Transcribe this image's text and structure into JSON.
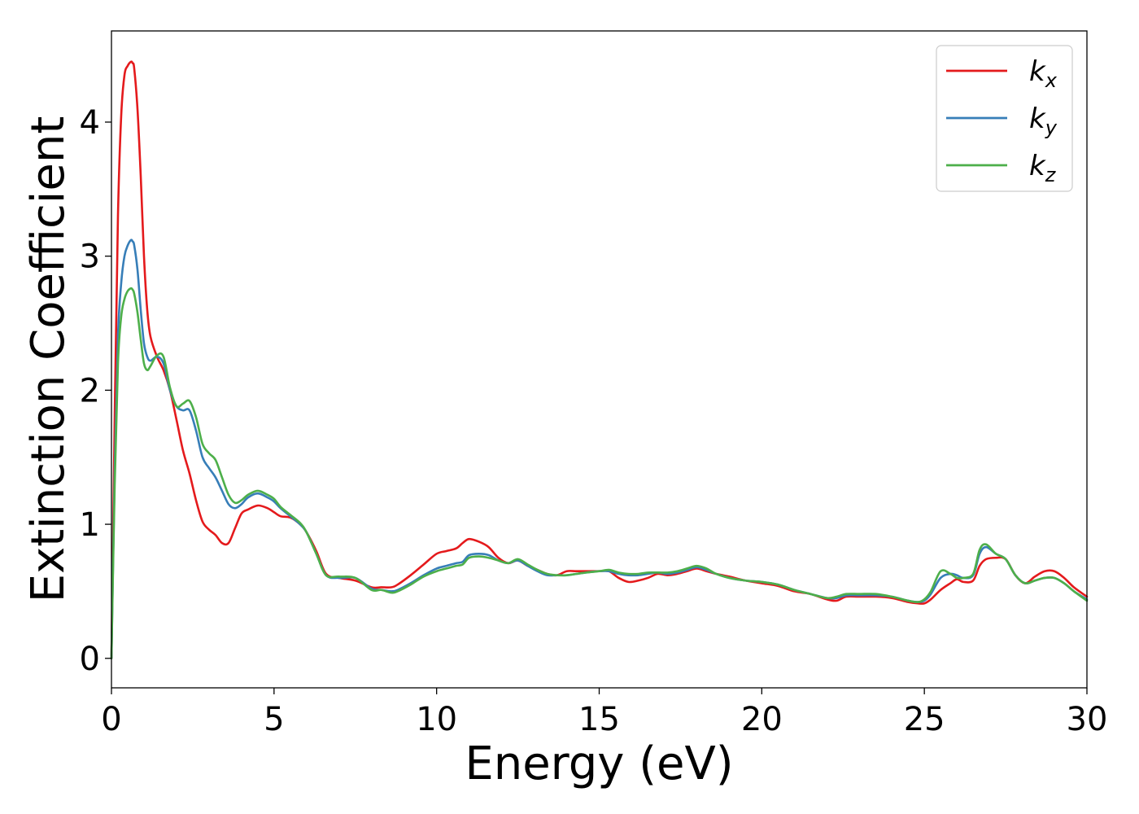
{
  "chart_data": {
    "type": "line",
    "xlabel": "Energy (eV)",
    "ylabel": "Extinction Coefficient",
    "xlim": [
      0,
      30
    ],
    "ylim": [
      -0.22,
      4.68
    ],
    "xticks": [
      0,
      5,
      10,
      15,
      20,
      25,
      30
    ],
    "yticks": [
      0,
      1,
      2,
      3,
      4
    ],
    "grid": false,
    "legend_position": "top-right",
    "series": [
      {
        "name": "k_x",
        "label_base": "k",
        "label_sub": "x",
        "color": "#e41a1c",
        "x": [
          0,
          0.1,
          0.2,
          0.3,
          0.4,
          0.5,
          0.6,
          0.65,
          0.7,
          0.8,
          0.9,
          1.0,
          1.1,
          1.2,
          1.4,
          1.6,
          1.8,
          2.0,
          2.2,
          2.4,
          2.6,
          2.8,
          3.0,
          3.2,
          3.4,
          3.6,
          3.8,
          4.0,
          4.2,
          4.5,
          4.8,
          5.0,
          5.2,
          5.5,
          5.8,
          6.0,
          6.3,
          6.6,
          7.0,
          7.5,
          8.0,
          8.3,
          8.6,
          8.8,
          9.2,
          9.6,
          10.0,
          10.3,
          10.6,
          10.8,
          11.0,
          11.3,
          11.6,
          11.9,
          12.2,
          12.5,
          12.8,
          13.1,
          13.4,
          13.7,
          14.0,
          14.3,
          14.6,
          15.0,
          15.3,
          15.6,
          15.9,
          16.2,
          16.5,
          16.8,
          17.1,
          17.4,
          17.7,
          18.0,
          18.3,
          18.6,
          19.0,
          19.5,
          20.0,
          20.5,
          21.0,
          21.5,
          22.0,
          22.3,
          22.6,
          23.0,
          23.5,
          24.0,
          24.5,
          24.8,
          25.0,
          25.2,
          25.5,
          25.8,
          26.0,
          26.2,
          26.5,
          26.7,
          26.9,
          27.2,
          27.5,
          27.8,
          28.1,
          28.4,
          28.7,
          29.0,
          29.3,
          29.6,
          30.0
        ],
        "y": [
          0.0,
          1.8,
          3.3,
          4.05,
          4.35,
          4.42,
          4.45,
          4.44,
          4.4,
          4.1,
          3.6,
          3.0,
          2.6,
          2.4,
          2.25,
          2.15,
          2.0,
          1.78,
          1.55,
          1.38,
          1.18,
          1.02,
          0.96,
          0.92,
          0.86,
          0.86,
          0.97,
          1.08,
          1.11,
          1.14,
          1.12,
          1.09,
          1.06,
          1.05,
          1.0,
          0.94,
          0.8,
          0.63,
          0.6,
          0.58,
          0.53,
          0.53,
          0.53,
          0.55,
          0.62,
          0.7,
          0.78,
          0.8,
          0.82,
          0.86,
          0.89,
          0.87,
          0.83,
          0.75,
          0.71,
          0.73,
          0.69,
          0.66,
          0.63,
          0.62,
          0.65,
          0.65,
          0.65,
          0.65,
          0.65,
          0.6,
          0.57,
          0.58,
          0.6,
          0.63,
          0.62,
          0.63,
          0.65,
          0.67,
          0.65,
          0.63,
          0.61,
          0.58,
          0.56,
          0.54,
          0.5,
          0.48,
          0.44,
          0.43,
          0.46,
          0.46,
          0.46,
          0.45,
          0.42,
          0.41,
          0.41,
          0.44,
          0.51,
          0.56,
          0.59,
          0.57,
          0.58,
          0.69,
          0.74,
          0.75,
          0.74,
          0.62,
          0.56,
          0.61,
          0.65,
          0.65,
          0.6,
          0.53,
          0.46
        ]
      },
      {
        "name": "k_y",
        "label_base": "k",
        "label_sub": "y",
        "color": "#377eb8",
        "x": [
          0,
          0.1,
          0.2,
          0.3,
          0.4,
          0.5,
          0.6,
          0.65,
          0.7,
          0.8,
          0.9,
          1.0,
          1.1,
          1.2,
          1.4,
          1.6,
          1.8,
          2.0,
          2.2,
          2.4,
          2.6,
          2.8,
          3.0,
          3.2,
          3.4,
          3.6,
          3.8,
          4.0,
          4.2,
          4.5,
          4.8,
          5.0,
          5.2,
          5.5,
          5.8,
          6.0,
          6.3,
          6.6,
          7.0,
          7.5,
          8.0,
          8.3,
          8.6,
          8.8,
          9.2,
          9.6,
          10.0,
          10.3,
          10.6,
          10.8,
          11.0,
          11.3,
          11.6,
          11.9,
          12.2,
          12.5,
          12.8,
          13.1,
          13.4,
          13.7,
          14.0,
          14.3,
          14.6,
          15.0,
          15.3,
          15.6,
          15.9,
          16.2,
          16.5,
          16.8,
          17.1,
          17.4,
          17.7,
          18.0,
          18.3,
          18.6,
          19.0,
          19.5,
          20.0,
          20.5,
          21.0,
          21.5,
          22.0,
          22.3,
          22.6,
          23.0,
          23.5,
          24.0,
          24.5,
          24.8,
          25.0,
          25.2,
          25.5,
          25.8,
          26.0,
          26.2,
          26.5,
          26.7,
          26.9,
          27.2,
          27.5,
          27.8,
          28.1,
          28.4,
          28.7,
          29.0,
          29.3,
          29.6,
          30.0
        ],
        "y": [
          0.0,
          1.4,
          2.4,
          2.8,
          3.0,
          3.08,
          3.12,
          3.11,
          3.08,
          2.9,
          2.6,
          2.35,
          2.25,
          2.22,
          2.25,
          2.2,
          2.0,
          1.88,
          1.85,
          1.85,
          1.7,
          1.5,
          1.42,
          1.35,
          1.25,
          1.15,
          1.12,
          1.15,
          1.2,
          1.23,
          1.2,
          1.17,
          1.12,
          1.06,
          1.0,
          0.94,
          0.78,
          0.62,
          0.6,
          0.6,
          0.52,
          0.51,
          0.5,
          0.51,
          0.56,
          0.62,
          0.67,
          0.69,
          0.71,
          0.72,
          0.77,
          0.78,
          0.77,
          0.73,
          0.71,
          0.73,
          0.69,
          0.65,
          0.62,
          0.62,
          0.62,
          0.63,
          0.64,
          0.65,
          0.65,
          0.63,
          0.62,
          0.62,
          0.63,
          0.64,
          0.63,
          0.64,
          0.66,
          0.68,
          0.66,
          0.63,
          0.6,
          0.58,
          0.57,
          0.55,
          0.51,
          0.48,
          0.45,
          0.45,
          0.47,
          0.47,
          0.47,
          0.46,
          0.43,
          0.42,
          0.43,
          0.48,
          0.6,
          0.63,
          0.62,
          0.6,
          0.62,
          0.78,
          0.83,
          0.78,
          0.74,
          0.62,
          0.56,
          0.58,
          0.6,
          0.6,
          0.56,
          0.5,
          0.44
        ]
      },
      {
        "name": "k_z",
        "label_base": "k",
        "label_sub": "z",
        "color": "#4daf4a",
        "x": [
          0,
          0.1,
          0.2,
          0.3,
          0.4,
          0.5,
          0.6,
          0.65,
          0.7,
          0.8,
          0.9,
          1.0,
          1.1,
          1.2,
          1.4,
          1.6,
          1.8,
          2.0,
          2.2,
          2.4,
          2.6,
          2.8,
          3.0,
          3.2,
          3.4,
          3.6,
          3.8,
          4.0,
          4.2,
          4.5,
          4.8,
          5.0,
          5.2,
          5.5,
          5.8,
          6.0,
          6.3,
          6.6,
          7.0,
          7.5,
          8.0,
          8.3,
          8.6,
          8.8,
          9.2,
          9.6,
          10.0,
          10.3,
          10.6,
          10.8,
          11.0,
          11.3,
          11.6,
          11.9,
          12.2,
          12.5,
          12.8,
          13.1,
          13.4,
          13.7,
          14.0,
          14.3,
          14.6,
          15.0,
          15.3,
          15.6,
          15.9,
          16.2,
          16.5,
          16.8,
          17.1,
          17.4,
          17.7,
          18.0,
          18.3,
          18.6,
          19.0,
          19.5,
          20.0,
          20.5,
          21.0,
          21.5,
          22.0,
          22.3,
          22.6,
          23.0,
          23.5,
          24.0,
          24.5,
          24.8,
          25.0,
          25.2,
          25.5,
          25.8,
          26.0,
          26.2,
          26.5,
          26.7,
          26.9,
          27.2,
          27.5,
          27.8,
          28.1,
          28.4,
          28.7,
          29.0,
          29.3,
          29.6,
          30.0
        ],
        "y": [
          0.0,
          1.3,
          2.2,
          2.55,
          2.68,
          2.74,
          2.76,
          2.75,
          2.72,
          2.58,
          2.38,
          2.2,
          2.15,
          2.18,
          2.26,
          2.25,
          2.02,
          1.88,
          1.9,
          1.92,
          1.8,
          1.6,
          1.53,
          1.48,
          1.35,
          1.22,
          1.16,
          1.18,
          1.22,
          1.25,
          1.22,
          1.19,
          1.13,
          1.07,
          1.01,
          0.94,
          0.78,
          0.62,
          0.61,
          0.6,
          0.51,
          0.51,
          0.49,
          0.5,
          0.55,
          0.61,
          0.65,
          0.67,
          0.69,
          0.7,
          0.75,
          0.76,
          0.75,
          0.73,
          0.71,
          0.74,
          0.7,
          0.66,
          0.63,
          0.62,
          0.62,
          0.63,
          0.64,
          0.65,
          0.66,
          0.64,
          0.63,
          0.63,
          0.64,
          0.64,
          0.64,
          0.65,
          0.67,
          0.69,
          0.67,
          0.63,
          0.6,
          0.58,
          0.57,
          0.55,
          0.51,
          0.48,
          0.45,
          0.46,
          0.48,
          0.48,
          0.48,
          0.46,
          0.43,
          0.42,
          0.44,
          0.5,
          0.65,
          0.63,
          0.6,
          0.6,
          0.63,
          0.81,
          0.85,
          0.78,
          0.74,
          0.62,
          0.56,
          0.58,
          0.6,
          0.6,
          0.56,
          0.5,
          0.43
        ]
      }
    ]
  }
}
